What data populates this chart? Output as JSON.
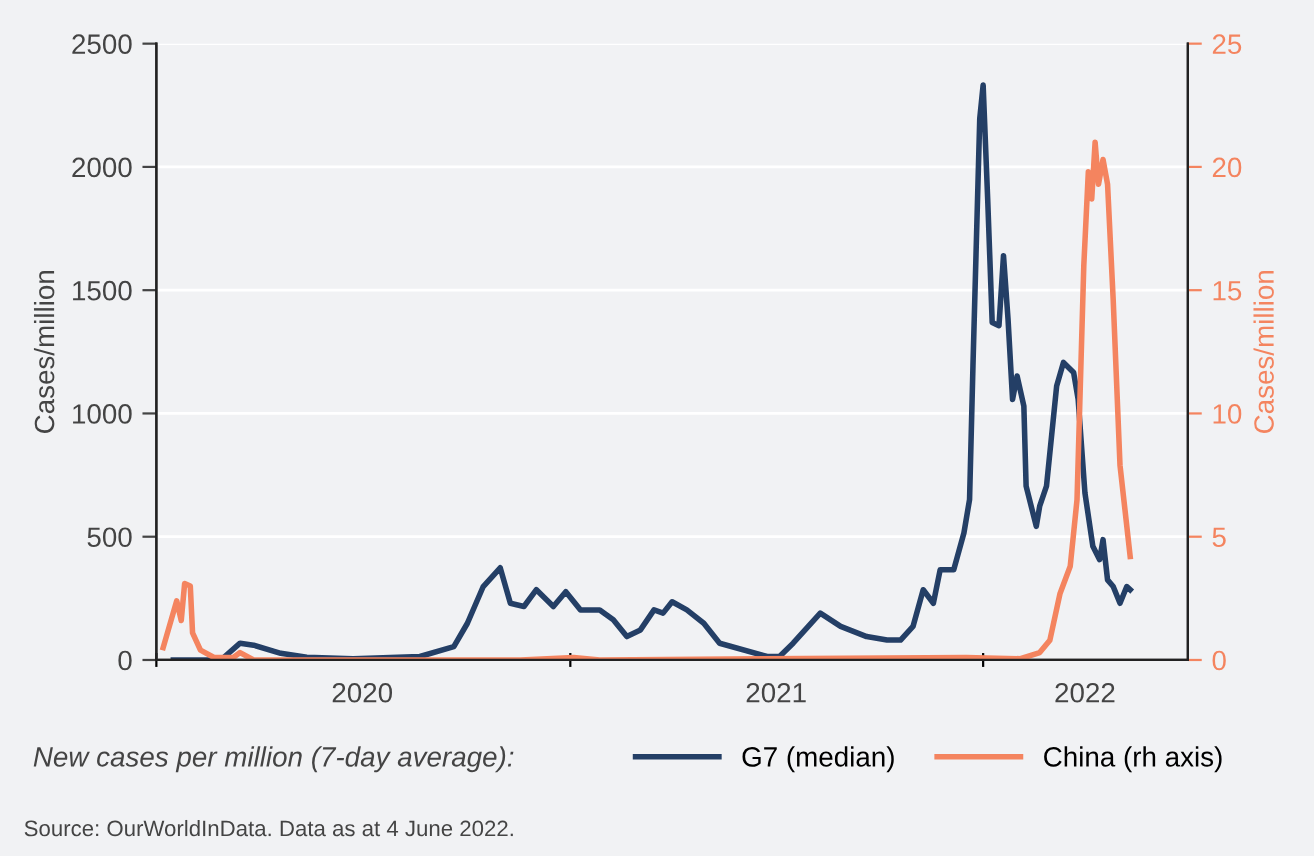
{
  "chart_data": {
    "type": "line",
    "ylabel": "Cases/million",
    "y2label": "Cases/million",
    "legend_title": "New cases per million (7-day average):",
    "annotations": [
      "Source: OurWorldInData. Data as at 4 June 2022."
    ],
    "xlim": [
      "2020-01-01",
      "2022-07-01"
    ],
    "xticks": [
      {
        "value": "2020-01-01",
        "label": null
      },
      {
        "value": "2020-07-01",
        "label": "2020"
      },
      {
        "value": "2021-01-01",
        "label": null
      },
      {
        "value": "2021-07-02",
        "label": "2021"
      },
      {
        "value": "2022-01-01",
        "label": null
      },
      {
        "value": "2022-04-01",
        "label": "2022"
      }
    ],
    "ylim": [
      0,
      2500
    ],
    "yticks": [
      0,
      500,
      1000,
      1500,
      2000,
      2500
    ],
    "y2lim": [
      0,
      25
    ],
    "y2ticks": [
      0,
      5,
      10,
      15,
      20,
      25
    ],
    "grid": "y",
    "legend": "bottom",
    "marker": "none",
    "line_style": "solid",
    "series": [
      {
        "name": "G7 (median)",
        "color": "#243f66",
        "x": [
          "2020-01-16",
          "2020-02-27",
          "2020-03-15",
          "2020-03-27",
          "2020-04-20",
          "2020-05-13",
          "2020-06-23",
          "2020-08-21",
          "2020-09-20",
          "2020-10-02",
          "2020-10-16",
          "2020-10-31",
          "2020-11-09",
          "2020-11-21",
          "2020-12-02",
          "2020-12-17",
          "2020-12-28",
          "2021-01-10",
          "2021-01-27",
          "2021-02-08",
          "2021-02-20",
          "2021-03-04",
          "2021-03-16",
          "2021-03-24",
          "2021-04-01",
          "2021-04-14",
          "2021-04-29",
          "2021-05-13",
          "2021-06-24",
          "2021-07-05",
          "2021-07-17",
          "2021-08-10",
          "2021-08-28",
          "2021-09-20",
          "2021-10-08",
          "2021-10-20",
          "2021-10-31",
          "2021-11-09",
          "2021-11-18",
          "2021-11-24",
          "2021-12-06",
          "2021-12-15",
          "2021-12-20",
          "2021-12-23",
          "2021-12-29",
          "2022-01-01",
          "2022-01-05",
          "2022-01-09",
          "2022-01-15",
          "2022-01-19",
          "2022-01-23",
          "2022-01-27",
          "2022-01-31",
          "2022-02-06",
          "2022-02-08",
          "2022-02-17",
          "2022-02-20",
          "2022-02-26",
          "2022-03-07",
          "2022-03-13",
          "2022-03-22",
          "2022-03-26",
          "2022-04-01",
          "2022-04-08",
          "2022-04-14",
          "2022-04-17",
          "2022-04-21",
          "2022-04-26",
          "2022-05-02",
          "2022-05-08",
          "2022-05-11"
        ],
        "values": [
          0,
          0,
          68,
          60,
          27,
          11,
          5,
          14,
          54,
          149,
          298,
          374,
          230,
          217,
          285,
          217,
          277,
          203,
          203,
          163,
          95,
          122,
          203,
          190,
          236,
          203,
          149,
          68,
          14,
          14,
          68,
          190,
          136,
          95,
          81,
          81,
          136,
          285,
          230,
          366,
          366,
          515,
          651,
          1193,
          2196,
          2332,
          1871,
          1369,
          1356,
          1640,
          1383,
          1057,
          1152,
          1030,
          705,
          542,
          624,
          705,
          1111,
          1207,
          1166,
          1057,
          678,
          461,
          407,
          488,
          325,
          298,
          230,
          298,
          285
        ]
      },
      {
        "name": "China (rh axis)",
        "color": "#f4845f",
        "axis": "y2",
        "x": [
          "2020-01-07",
          "2020-01-19",
          "2020-01-23",
          "2020-01-26",
          "2020-01-31",
          "2020-02-02",
          "2020-02-09",
          "2020-02-21",
          "2020-03-09",
          "2020-03-15",
          "2020-03-27",
          "2020-11-18",
          "2021-01-04",
          "2021-01-27",
          "2021-12-17",
          "2022-02-03",
          "2022-02-20",
          "2022-03-01",
          "2022-03-10",
          "2022-03-19",
          "2022-03-25",
          "2022-03-31",
          "2022-04-04",
          "2022-04-07",
          "2022-04-10",
          "2022-04-13",
          "2022-04-17",
          "2022-04-21",
          "2022-04-26",
          "2022-05-02",
          "2022-05-11"
        ],
        "values": [
          0.5,
          2.4,
          1.6,
          3.1,
          3.0,
          1.1,
          0.4,
          0.1,
          0.1,
          0.3,
          0,
          0,
          0.1,
          0,
          0.1,
          0.05,
          0.3,
          0.8,
          2.7,
          3.8,
          6.5,
          16,
          19.8,
          18.7,
          21,
          19.3,
          20.3,
          19.3,
          14.6,
          7.9,
          4.2
        ]
      }
    ]
  }
}
